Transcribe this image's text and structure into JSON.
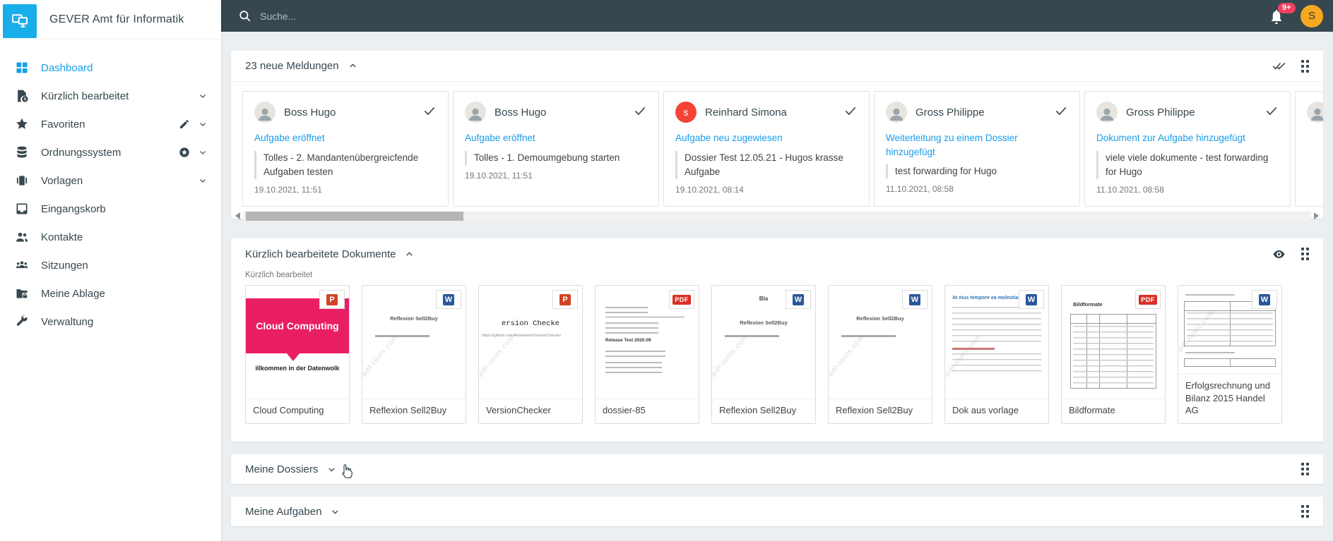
{
  "colors": {
    "accent_blue": "#18a0e8",
    "topbar_bg": "#37474f",
    "badge_red": "#f4415f",
    "avatar_orange": "#f6a821",
    "reinhard_red": "#f44336",
    "cloud_pink": "#ea1e63"
  },
  "app": {
    "title": "GEVER Amt für Informatik"
  },
  "topbar": {
    "search_placeholder": "Suche...",
    "notification_count": "9+",
    "user_initial": "S"
  },
  "sidebar": {
    "items": [
      {
        "label": "Dashboard",
        "icon": "dashboard-icon",
        "active": true,
        "chevron": false,
        "extra": null
      },
      {
        "label": "Kürzlich bearbeitet",
        "icon": "recent-document-icon",
        "active": false,
        "chevron": true,
        "extra": null
      },
      {
        "label": "Favoriten",
        "icon": "star-icon",
        "active": false,
        "chevron": true,
        "extra": "pencil-icon"
      },
      {
        "label": "Ordnungssystem",
        "icon": "database-icon",
        "active": false,
        "chevron": true,
        "extra": "star-circle-icon"
      },
      {
        "label": "Vorlagen",
        "icon": "templates-icon",
        "active": false,
        "chevron": true,
        "extra": null
      },
      {
        "label": "Eingangskorb",
        "icon": "inbox-icon",
        "active": false,
        "chevron": false,
        "extra": null
      },
      {
        "label": "Kontakte",
        "icon": "contacts-icon",
        "active": false,
        "chevron": false,
        "extra": null
      },
      {
        "label": "Sitzungen",
        "icon": "meetings-icon",
        "active": false,
        "chevron": false,
        "extra": null
      },
      {
        "label": "Meine Ablage",
        "icon": "folder-lock-icon",
        "active": false,
        "chevron": false,
        "extra": null
      },
      {
        "label": "Verwaltung",
        "icon": "wrench-icon",
        "active": false,
        "chevron": false,
        "extra": null
      }
    ]
  },
  "meldungen": {
    "title": "23 neue Meldungen",
    "cards": [
      {
        "name": "Boss Hugo",
        "action": "Aufgabe eröffnet",
        "quote": "Tolles - 2. Mandantenübergreicfende Aufgaben testen",
        "date": "19.10.2021, 11:51",
        "avatar_type": "photo",
        "avatar_initial": "",
        "avatar_color": ""
      },
      {
        "name": "Boss Hugo",
        "action": "Aufgabe eröffnet",
        "quote": "Tolles - 1. Demoumgebung starten",
        "date": "19.10.2021, 11:51",
        "avatar_type": "photo",
        "avatar_initial": "",
        "avatar_color": ""
      },
      {
        "name": "Reinhard Simona",
        "action": "Aufgabe neu zugewiesen",
        "quote": "Dossier Test 12.05.21 - Hugos krasse Aufgabe",
        "date": "19.10.2021, 08:14",
        "avatar_type": "letter",
        "avatar_initial": "s",
        "avatar_color": "#f44336"
      },
      {
        "name": "Gross Philippe",
        "action": "Weiterleitung zu einem Dossier hinzugefügt",
        "quote": "test forwarding for Hugo",
        "date": "11.10.2021, 08:58",
        "avatar_type": "photo",
        "avatar_initial": "",
        "avatar_color": ""
      },
      {
        "name": "Gross Philippe",
        "action": "Dokument zur Aufgabe hinzugefügt",
        "quote": "viele viele dokumente - test forwarding for Hugo",
        "date": "11.10.2021, 08:58",
        "avatar_type": "photo",
        "avatar_initial": "",
        "avatar_color": ""
      },
      {
        "name": "",
        "action": "",
        "quote": "",
        "date": "",
        "avatar_type": "photo",
        "avatar_initial": "",
        "avatar_color": "",
        "partial": true
      }
    ]
  },
  "dokumente": {
    "title": "Kürzlich bearbeitete Dokumente",
    "subtitle": "Kürzlich bearbeitet",
    "watermark": "www.pdf-tools.com",
    "cards": [
      {
        "title": "Cloud Computing",
        "file_type": "ppt",
        "variant": "cloud",
        "watermark": false,
        "thumb_heading": "Cloud Computing",
        "thumb_sub": "illkommen in der Datenwolk",
        "thumb_top": "",
        "thumb_link": ""
      },
      {
        "title": "Reflexion Sell2Buy",
        "file_type": "word",
        "variant": "reflexion",
        "watermark": true,
        "thumb_heading": "Reflexion Sell2Buy",
        "thumb_sub": "",
        "thumb_top": "",
        "thumb_link": ""
      },
      {
        "title": "VersionChecker",
        "file_type": "ppt",
        "variant": "version",
        "watermark": true,
        "thumb_heading": "ersion Checke",
        "thumb_sub": "",
        "thumb_top": "",
        "thumb_link": "https://github.com/4teamwork/VersionChecker"
      },
      {
        "title": "dossier-85",
        "file_type": "pdf",
        "variant": "release",
        "watermark": false,
        "thumb_heading": "Release Test 2020.09",
        "thumb_sub": "",
        "thumb_top": "",
        "thumb_link": ""
      },
      {
        "title": "Reflexion Sell2Buy",
        "file_type": "word",
        "variant": "reflexion",
        "watermark": true,
        "thumb_heading": "Reflexion Sell2Buy",
        "thumb_sub": "",
        "thumb_top": "Bla",
        "thumb_link": ""
      },
      {
        "title": "Reflexion Sell2Buy",
        "file_type": "word",
        "variant": "reflexion",
        "watermark": true,
        "thumb_heading": "Reflexion Sell2Buy",
        "thumb_sub": "",
        "thumb_top": "",
        "thumb_link": ""
      },
      {
        "title": "Dok aus vorlage",
        "file_type": "word",
        "variant": "molestias",
        "watermark": true,
        "thumb_heading": "At eius tempore ea molestias",
        "thumb_sub": "",
        "thumb_top": "",
        "thumb_link": ""
      },
      {
        "title": "Bildformate",
        "file_type": "pdf",
        "variant": "bildformate",
        "watermark": false,
        "thumb_heading": "Bildformate",
        "thumb_sub": "",
        "thumb_top": "",
        "thumb_link": ""
      },
      {
        "title": "Erfolgsrechnung und Bilanz 2015 Handel AG",
        "file_type": "word",
        "variant": "bilanz",
        "watermark": true,
        "thumb_heading": "",
        "thumb_sub": "",
        "thumb_top": "",
        "thumb_link": ""
      }
    ]
  },
  "dossiers": {
    "title": "Meine Dossiers"
  },
  "aufgaben": {
    "title": "Meine Aufgaben"
  }
}
